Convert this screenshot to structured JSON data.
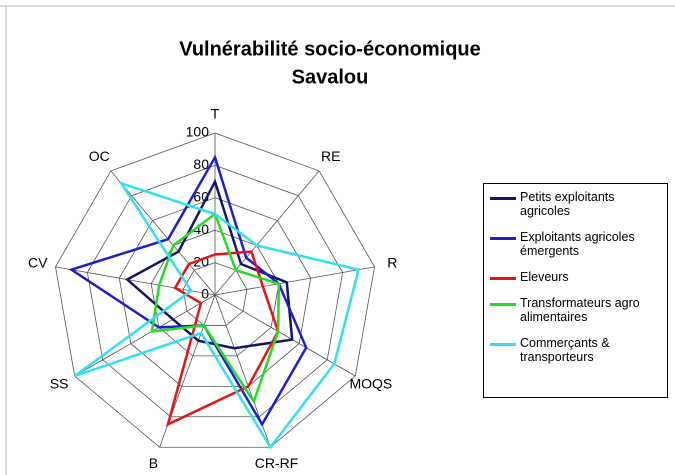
{
  "chart_data": {
    "type": "radar",
    "title": "Vulnérabilité socio-économique",
    "subtitle": "Savalou",
    "categories": [
      "T",
      "RE",
      "R",
      "MOQS",
      "CR-RF",
      "B",
      "SS",
      "CV",
      "OC"
    ],
    "ylim": [
      0,
      100
    ],
    "yticks": [
      0,
      20,
      40,
      60,
      80,
      100
    ],
    "grid": true,
    "series": [
      {
        "name": "Petits exploitants agricoles",
        "color": "#14146e",
        "values": [
          70,
          25,
          45,
          55,
          35,
          30,
          30,
          55,
          35
        ]
      },
      {
        "name": "Exploitants agricoles émergents",
        "color": "#2020c8",
        "values": [
          85,
          30,
          40,
          65,
          85,
          20,
          40,
          90,
          45
        ]
      },
      {
        "name": "Eleveurs",
        "color": "#e81414",
        "values": [
          25,
          35,
          30,
          45,
          60,
          85,
          10,
          25,
          25
        ]
      },
      {
        "name": "Transformateurs agro alimentaires",
        "color": "#22dd22",
        "values": [
          50,
          20,
          40,
          45,
          70,
          20,
          45,
          35,
          40
        ]
      },
      {
        "name": "Commerçants & transporteurs",
        "color": "#33e0f0",
        "values": [
          50,
          40,
          90,
          85,
          100,
          25,
          100,
          15,
          90
        ]
      }
    ]
  }
}
